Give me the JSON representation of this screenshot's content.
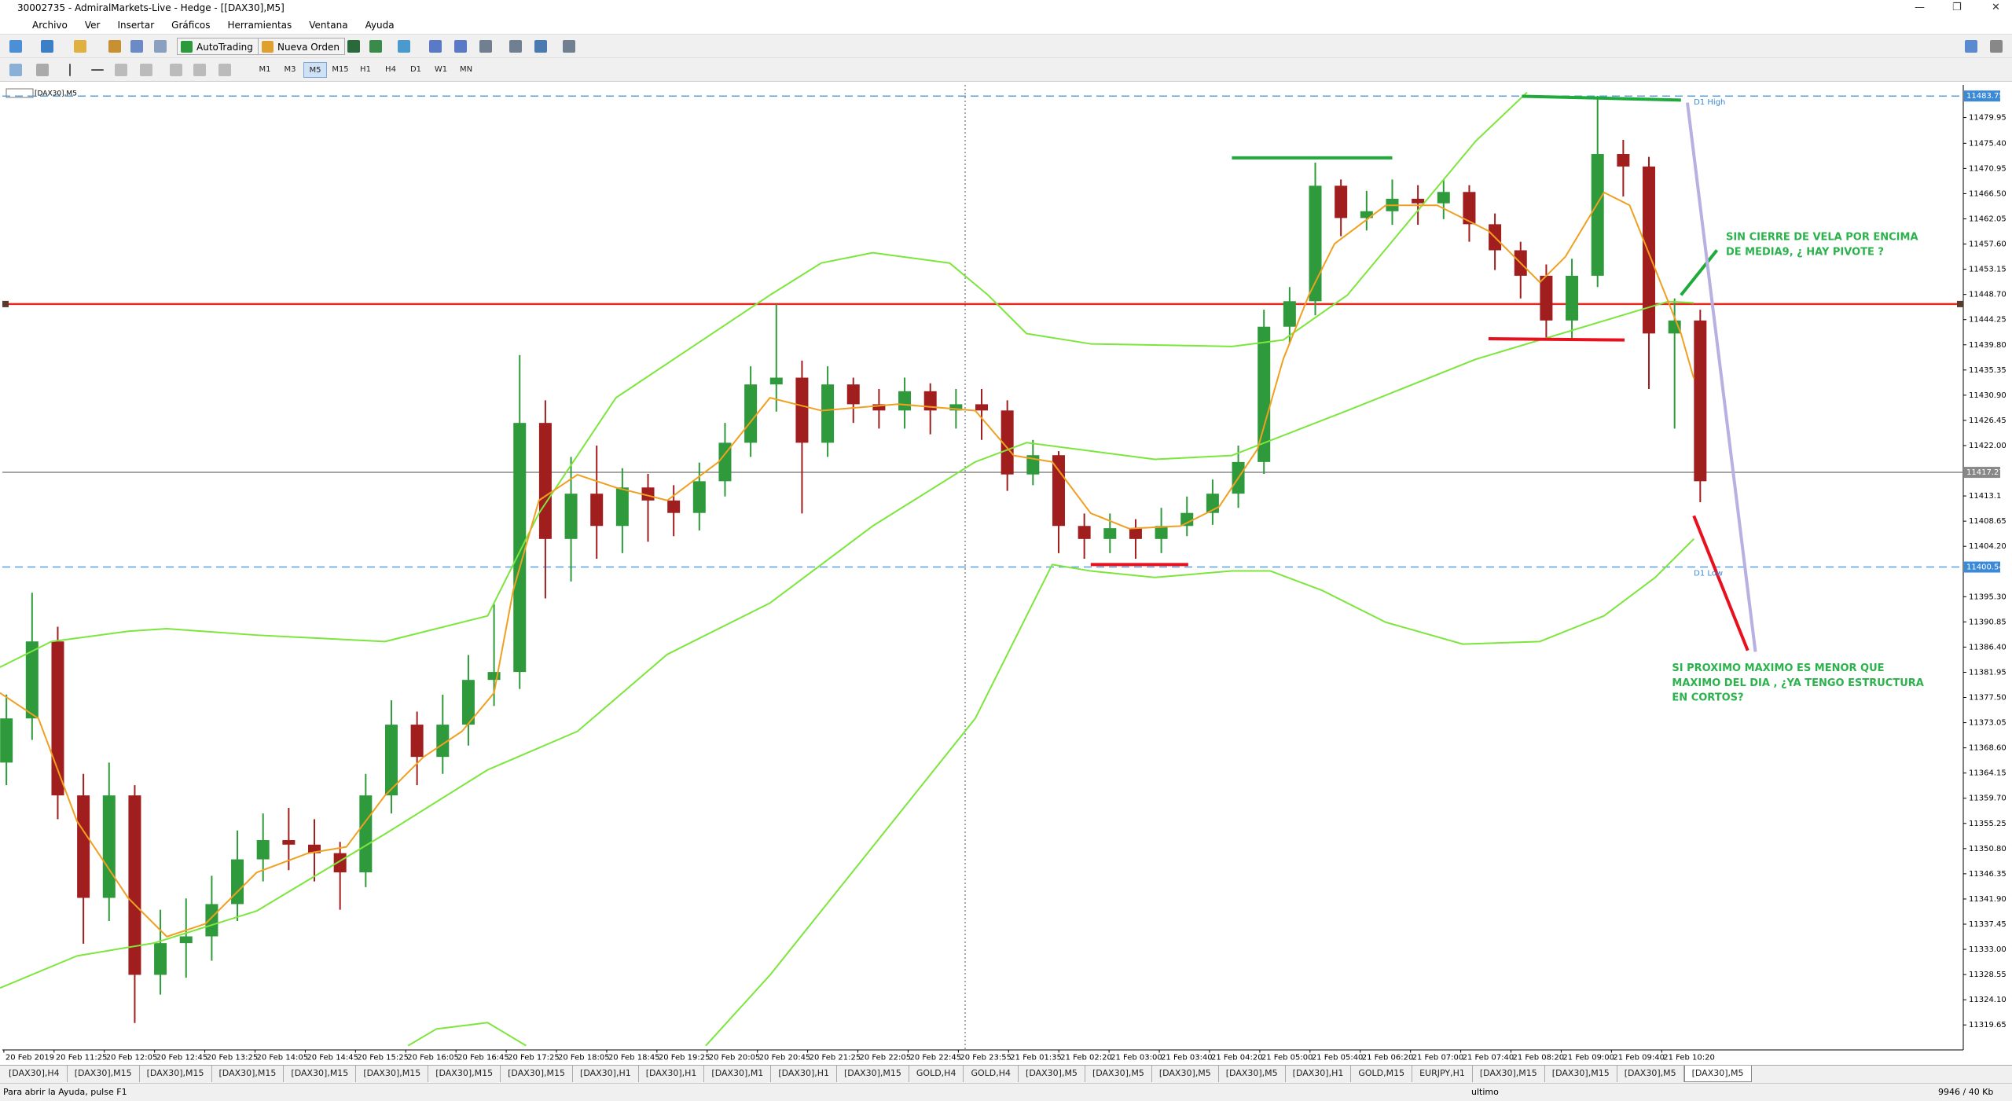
{
  "window": {
    "title": "30002735 - AdmiralMarkets-Live - Hedge - [[DAX30],M5]"
  },
  "menu": [
    "Archivo",
    "Ver",
    "Insertar",
    "Gráficos",
    "Herramientas",
    "Ventana",
    "Ayuda"
  ],
  "toolbar": {
    "buttons": [
      "AutoTrading",
      "Nueva Orden"
    ],
    "timeframes": [
      "M1",
      "M3",
      "M5",
      "M15",
      "H1",
      "H4",
      "D1",
      "W1",
      "MN"
    ],
    "active_timeframe": "M5"
  },
  "chart_data": {
    "type": "candlestick",
    "symbol": "[DAX30],M5",
    "ohlc": [
      [
        11366.0,
        11378.0,
        11362.0,
        11373.8
      ],
      [
        11373.8,
        11396.0,
        11370.0,
        11387.4
      ],
      [
        11387.4,
        11390.0,
        11356.0,
        11360.2
      ],
      [
        11360.2,
        11364.0,
        11334.0,
        11342.1
      ],
      [
        11342.1,
        11366.0,
        11338.0,
        11360.2
      ],
      [
        11360.2,
        11362.0,
        11320.0,
        11328.5
      ],
      [
        11328.5,
        11340.0,
        11325.0,
        11334.1
      ],
      [
        11334.1,
        11342.0,
        11328.0,
        11335.3
      ],
      [
        11335.3,
        11346.0,
        11331.0,
        11341.0
      ],
      [
        11341.0,
        11354.0,
        11338.0,
        11348.9
      ],
      [
        11348.9,
        11357.0,
        11345.0,
        11352.3
      ],
      [
        11352.3,
        11358.0,
        11347.0,
        11351.5
      ],
      [
        11351.5,
        11356.0,
        11345.0,
        11350.0
      ],
      [
        11350.0,
        11352.0,
        11340.0,
        11346.6
      ],
      [
        11346.6,
        11364.0,
        11344.0,
        11360.2
      ],
      [
        11360.2,
        11377.0,
        11357.0,
        11372.7
      ],
      [
        11372.7,
        11375.0,
        11362.0,
        11367.0
      ],
      [
        11367.0,
        11378.0,
        11364.0,
        11372.7
      ],
      [
        11372.7,
        11385.0,
        11369.0,
        11380.6
      ],
      [
        11380.6,
        11394.0,
        11376.0,
        11382.0
      ],
      [
        11382.0,
        11438.0,
        11379.0,
        11426.0
      ],
      [
        11426.0,
        11430.0,
        11395.0,
        11405.5
      ],
      [
        11405.5,
        11420.0,
        11398.0,
        11413.5
      ],
      [
        11413.5,
        11422.0,
        11402.0,
        11407.8
      ],
      [
        11407.8,
        11418.0,
        11403.0,
        11414.6
      ],
      [
        11414.6,
        11417.0,
        11405.0,
        11412.3
      ],
      [
        11412.3,
        11415.0,
        11406.0,
        11410.1
      ],
      [
        11410.1,
        11419.0,
        11407.0,
        11415.7
      ],
      [
        11415.7,
        11426.0,
        11413.0,
        11422.5
      ],
      [
        11422.5,
        11436.0,
        11420.0,
        11432.8
      ],
      [
        11432.8,
        11447.0,
        11428.0,
        11434.0
      ],
      [
        11434.0,
        11437.0,
        11410.0,
        11422.5
      ],
      [
        11422.5,
        11436.0,
        11420.0,
        11432.8
      ],
      [
        11432.8,
        11434.0,
        11426.0,
        11429.3
      ],
      [
        11429.3,
        11432.0,
        11425.0,
        11428.2
      ],
      [
        11428.2,
        11434.0,
        11425.0,
        11431.6
      ],
      [
        11431.6,
        11433.0,
        11424.0,
        11428.2
      ],
      [
        11428.2,
        11432.0,
        11425.0,
        11429.3
      ],
      [
        11429.3,
        11432.0,
        11423.0,
        11428.2
      ],
      [
        11428.2,
        11430.0,
        11414.0,
        11416.9
      ],
      [
        11416.9,
        11423.0,
        11415.0,
        11420.3
      ],
      [
        11420.3,
        11421.0,
        11403.0,
        11407.8
      ],
      [
        11407.8,
        11410.0,
        11402.0,
        11405.5
      ],
      [
        11405.5,
        11410.0,
        11403.0,
        11407.4
      ],
      [
        11407.4,
        11409.0,
        11402.0,
        11405.5
      ],
      [
        11405.5,
        11411.0,
        11403.0,
        11407.8
      ],
      [
        11407.8,
        11413.0,
        11406.0,
        11410.1
      ],
      [
        11410.1,
        11416.0,
        11408.0,
        11413.5
      ],
      [
        11413.5,
        11422.0,
        11411.0,
        11419.1
      ],
      [
        11419.1,
        11446.0,
        11417.0,
        11443.0
      ],
      [
        11443.0,
        11450.0,
        11440.0,
        11447.5
      ],
      [
        11447.5,
        11472.0,
        11445.0,
        11467.9
      ],
      [
        11467.9,
        11469.0,
        11459.0,
        11462.2
      ],
      [
        11462.2,
        11467.0,
        11460.0,
        11463.4
      ],
      [
        11463.4,
        11469.0,
        11461.0,
        11465.6
      ],
      [
        11465.6,
        11468.0,
        11461.0,
        11464.8
      ],
      [
        11464.8,
        11469.0,
        11462.0,
        11466.8
      ],
      [
        11466.8,
        11468.0,
        11458.0,
        11461.1
      ],
      [
        11461.1,
        11463.0,
        11453.0,
        11456.5
      ],
      [
        11456.5,
        11458.0,
        11448.0,
        11452.0
      ],
      [
        11452.0,
        11454.0,
        11441.0,
        11444.1
      ],
      [
        11444.1,
        11455.0,
        11441.0,
        11452.0
      ],
      [
        11452.0,
        11483.8,
        11450.0,
        11473.5
      ],
      [
        11473.5,
        11476.0,
        11466.0,
        11471.3
      ],
      [
        11471.3,
        11473.0,
        11432.0,
        11441.8
      ],
      [
        11441.8,
        11448.0,
        11425.0,
        11444.1
      ],
      [
        11444.1,
        11446.0,
        11412.0,
        11415.7
      ]
    ],
    "bull_color": "#2e9a3c",
    "bear_color": "#a01e1e",
    "ylim": [
      11315.3,
      11485.3
    ],
    "yticks": [
      11479.95,
      {
        "value": 11475.4,
        "label": "11475.40"
      },
      11470.95,
      {
        "value": 11466.5,
        "label": "11466.50"
      },
      11462.05,
      {
        "value": 11457.6,
        "label": "11457.60"
      },
      11453.15,
      {
        "value": 11448.7,
        "label": "11448.70"
      },
      11444.25,
      {
        "value": 11439.8,
        "label": "11439.80"
      },
      11435.35,
      {
        "value": 11430.9,
        "label": "11430.90"
      },
      11426.45,
      {
        "value": 11422,
        "label": "11422.00"
      },
      11413.1,
      11408.65,
      {
        "value": 11404.2,
        "label": "11404.20"
      },
      {
        "value": 11395.3,
        "label": "11395.30"
      },
      11390.85,
      {
        "value": 11386.4,
        "label": "11386.40"
      },
      11381.95,
      {
        "value": 11377.5,
        "label": "11377.50"
      },
      11373.05,
      {
        "value": 11368.6,
        "label": "11368.60"
      },
      11364.15,
      {
        "value": 11359.7,
        "label": "11359.70"
      },
      11355.25,
      {
        "value": 11350.8,
        "label": "11350.80"
      },
      11346.35,
      {
        "value": 11341.9,
        "label": "11341.90"
      },
      11337.45,
      {
        "value": 11333,
        "label": "11333.00"
      },
      11328.55,
      {
        "value": 11324.1,
        "label": "11324.10"
      },
      11319.65
    ],
    "x_labels": [
      "20 Feb 2019",
      "20 Feb 11:25",
      "20 Feb 12:05",
      "20 Feb 12:45",
      "20 Feb 13:25",
      "20 Feb 14:05",
      "20 Feb 14:45",
      "20 Feb 15:25",
      "20 Feb 16:05",
      "20 Feb 16:45",
      "20 Feb 17:25",
      "20 Feb 18:05",
      "20 Feb 18:45",
      "20 Feb 19:25",
      "20 Feb 20:05",
      "20 Feb 20:45",
      "20 Feb 21:25",
      "20 Feb 22:05",
      "20 Feb 22:45",
      "20 Feb 23:55",
      "21 Feb 01:35",
      "21 Feb 02:20",
      "21 Feb 03:00",
      "21 Feb 03:40",
      "21 Feb 04:20",
      "21 Feb 05:00",
      "21 Feb 05:40",
      "21 Feb 06:20",
      "21 Feb 07:00",
      "21 Feb 07:40",
      "21 Feb 08:20",
      "21 Feb 09:00",
      "21 Feb 09:40",
      "21 Feb 10:20"
    ],
    "price_lines": [
      {
        "label": "D1 High",
        "value": 11483.75
      },
      {
        "label": "D1 Low",
        "value": 11400.54
      }
    ],
    "current_price": 11417.27,
    "level": 11447.0,
    "level_color": "#e8281e",
    "annotations": [
      [
        "SIN CIERRE DE VELA POR ENCIMA",
        "DE MEDIA9, ¿ HAY PIVOTE ?"
      ],
      [
        "SI PROXIMO MAXIMO ES MENOR QUE",
        "MAXIMO DEL DIA , ¿YA TENGO ESTRUCTURA",
        "EN CORTOS?"
      ]
    ],
    "annotation_color": "#2bb24c"
  },
  "tabs": [
    "[DAX30],H4",
    "[DAX30],M15",
    "[DAX30],M15",
    "[DAX30],M15",
    "[DAX30],M15",
    "[DAX30],M15",
    "[DAX30],M15",
    "[DAX30],M15",
    "[DAX30],H1",
    "[DAX30],H1",
    "[DAX30],M1",
    "[DAX30],H1",
    "[DAX30],M15",
    "GOLD,H4",
    "GOLD,H4",
    "[DAX30],M5",
    "[DAX30],M5",
    "[DAX30],M5",
    "[DAX30],M5",
    "[DAX30],H1",
    "GOLD,M15",
    "EURJPY,H1",
    "[DAX30],M15",
    "[DAX30],M15",
    "[DAX30],M5",
    "[DAX30],M5"
  ],
  "status": {
    "help": "Para abrir la Ayuda, pulse F1",
    "profile": "ultimo",
    "traffic": "9946 / 40 Kb"
  }
}
